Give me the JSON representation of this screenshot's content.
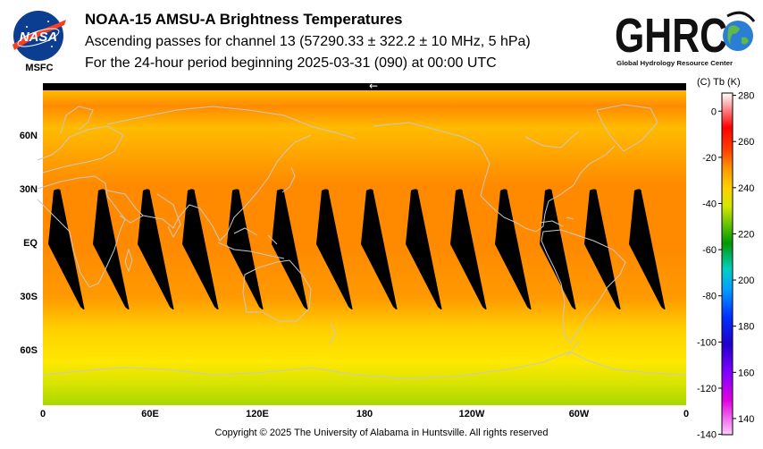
{
  "header": {
    "title": "NOAA-15 AMSU-A Brightness Temperatures",
    "subtitle_line1": "Ascending passes for channel 13 (57290.33 ± 322.2 ± 10 MHz, 5 hPa)",
    "subtitle_line2": "For the 24-hour period beginning 2025-03-31 (090) at 00:00 UTC"
  },
  "logos": {
    "nasa_text": "NASA",
    "nasa_sub": "MSFC",
    "ghrc_text": "GHRC",
    "ghrc_sub": "Global Hydrology Resource Center"
  },
  "map": {
    "arrow_glyph": "←",
    "lat_labels": [
      "60N",
      "30N",
      "EQ",
      "30S",
      "60S"
    ],
    "lat_values": [
      60,
      30,
      0,
      -30,
      -60
    ],
    "lon_labels": [
      "0",
      "60E",
      "120E",
      "180",
      "120W",
      "60W",
      "0"
    ],
    "lon_values": [
      0,
      60,
      120,
      180,
      240,
      300,
      360
    ],
    "swath_centers_lon": [
      15,
      40,
      65,
      90,
      115,
      140,
      165,
      190,
      215,
      240,
      265,
      290,
      315,
      340
    ]
  },
  "colorbar": {
    "units_label": "(C)  Tb  (K)",
    "k_ticks": [
      280,
      260,
      240,
      220,
      200,
      180,
      160,
      140
    ],
    "c_ticks": [
      0,
      -20,
      -40,
      -60,
      -80,
      -100,
      -120,
      -140
    ],
    "k_range": [
      133,
      281
    ],
    "stops": [
      {
        "k": 281,
        "color": "#ffffff"
      },
      {
        "k": 266,
        "color": "#ff0000"
      },
      {
        "k": 256,
        "color": "#ff4400"
      },
      {
        "k": 248,
        "color": "#ff9900"
      },
      {
        "k": 240,
        "color": "#ffd000"
      },
      {
        "k": 232,
        "color": "#d6e600"
      },
      {
        "k": 224,
        "color": "#66c400"
      },
      {
        "k": 216,
        "color": "#009900"
      },
      {
        "k": 205,
        "color": "#00d0c0"
      },
      {
        "k": 196,
        "color": "#00a0ff"
      },
      {
        "k": 184,
        "color": "#0030ff"
      },
      {
        "k": 172,
        "color": "#2000cc"
      },
      {
        "k": 160,
        "color": "#8000ff"
      },
      {
        "k": 148,
        "color": "#e000e0"
      },
      {
        "k": 133,
        "color": "#ffccff"
      }
    ]
  },
  "colors": {
    "swath_gap": "#000000",
    "coastline": "#c8c8c8",
    "tropics": "#ff8a00",
    "midlat": "#ffbb00",
    "south_high": "#ffe800",
    "south_polar": "#a8d800"
  },
  "footer": {
    "copyright": "Copyright © 2025 The University of Alabama in Huntsville.  All rights reserved"
  }
}
